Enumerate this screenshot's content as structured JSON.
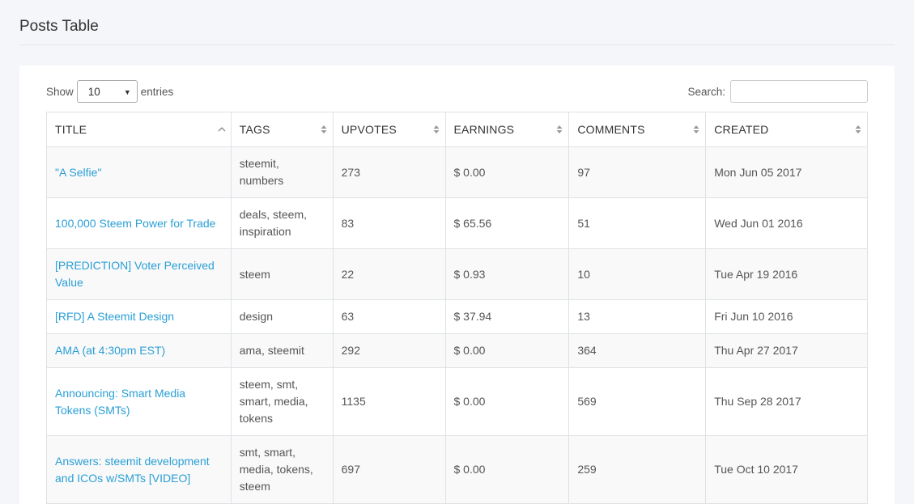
{
  "page": {
    "title": "Posts Table"
  },
  "controls": {
    "show_label": "Show",
    "entries_label": "entries",
    "page_length": "10",
    "search_label": "Search:",
    "search_value": ""
  },
  "table": {
    "columns": [
      {
        "label": "TITLE",
        "sort": "asc"
      },
      {
        "label": "TAGS",
        "sort": "both"
      },
      {
        "label": "UPVOTES",
        "sort": "both"
      },
      {
        "label": "EARNINGS",
        "sort": "both"
      },
      {
        "label": "COMMENTS",
        "sort": "both"
      },
      {
        "label": "CREATED",
        "sort": "both"
      }
    ],
    "rows": [
      {
        "title": "\"A Selfie\"",
        "tags": "steemit, numbers",
        "upvotes": "273",
        "earnings": "$ 0.00",
        "comments": "97",
        "created": "Mon Jun 05 2017"
      },
      {
        "title": "100,000 Steem Power for Trade",
        "tags": "deals, steem, inspiration",
        "upvotes": "83",
        "earnings": "$ 65.56",
        "comments": "51",
        "created": "Wed Jun 01 2016"
      },
      {
        "title": "[PREDICTION] Voter Perceived Value",
        "tags": "steem",
        "upvotes": "22",
        "earnings": "$ 0.93",
        "comments": "10",
        "created": "Tue Apr 19 2016"
      },
      {
        "title": "[RFD] A Steemit Design",
        "tags": "design",
        "upvotes": "63",
        "earnings": "$ 37.94",
        "comments": "13",
        "created": "Fri Jun 10 2016"
      },
      {
        "title": "AMA (at 4:30pm EST)",
        "tags": "ama, steemit",
        "upvotes": "292",
        "earnings": "$ 0.00",
        "comments": "364",
        "created": "Thu Apr 27 2017"
      },
      {
        "title": "Announcing: Smart Media Tokens (SMTs)",
        "tags": "steem, smt, smart, media, tokens",
        "upvotes": "1135",
        "earnings": "$ 0.00",
        "comments": "569",
        "created": "Thu Sep 28 2017"
      },
      {
        "title": "Answers: steemit development and ICOs w/SMTs [VIDEO]",
        "tags": "smt, smart, media, tokens, steem",
        "upvotes": "697",
        "earnings": "$ 0.00",
        "comments": "259",
        "created": "Tue Oct 10 2017"
      }
    ]
  },
  "colors": {
    "link": "#2a9fd6",
    "page_bg": "#f4f6f9",
    "stripe": "#f9f9f9"
  },
  "icons": {
    "sort_both": "sort-both-icon",
    "sort_asc": "sort-asc-icon",
    "select_caret": "caret-down-icon"
  }
}
